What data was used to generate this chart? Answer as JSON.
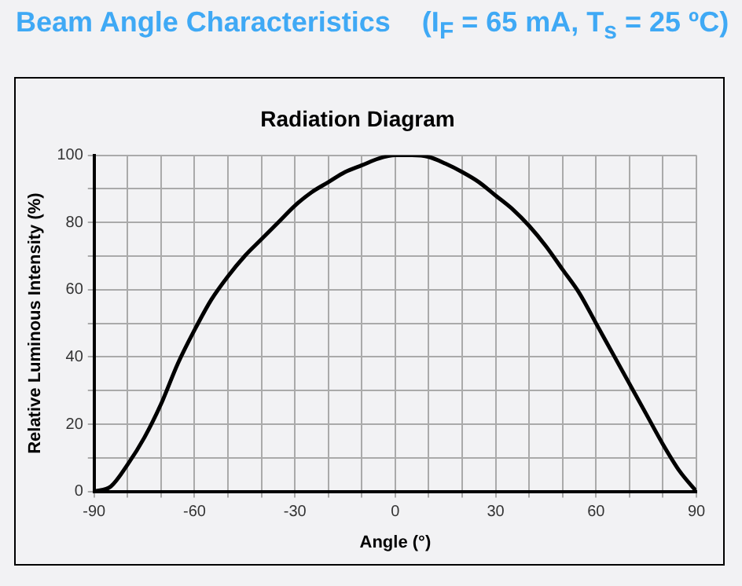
{
  "chart_data": {
    "type": "line",
    "title": "Beam Angle Characteristics    (I$_{F}$ = 65 mA, T$_{s}$ = 25 ºC)",
    "subtitle": "Radiation Diagram",
    "xlabel": "Angle (°)",
    "ylabel": "Relative Luminous Intensity (%)",
    "x": [
      -90,
      -85,
      -80,
      -75,
      -70,
      -65,
      -60,
      -55,
      -50,
      -45,
      -40,
      -35,
      -30,
      -25,
      -20,
      -15,
      -10,
      -5,
      0,
      5,
      10,
      15,
      20,
      25,
      30,
      35,
      40,
      45,
      50,
      55,
      60,
      65,
      70,
      75,
      80,
      85,
      90
    ],
    "series": [
      {
        "color": "#000000",
        "values": [
          0,
          1.5,
          8,
          16,
          26,
          38,
          48,
          57,
          64,
          70,
          75,
          80,
          85,
          89,
          92,
          95,
          97,
          99,
          100,
          100,
          99.5,
          97.5,
          95,
          92,
          88,
          84,
          79,
          73,
          66,
          59,
          50,
          41,
          32,
          23,
          14,
          6,
          0
        ]
      }
    ],
    "xlim": [
      -90,
      90
    ],
    "xticks": [
      -90,
      {
        "value": -80,
        "label": null
      },
      {
        "value": -70,
        "label": null
      },
      -60,
      {
        "value": -50,
        "label": null
      },
      {
        "value": -40,
        "label": null
      },
      -30,
      {
        "value": -20,
        "label": null
      },
      {
        "value": -10,
        "label": null
      },
      0,
      {
        "value": 10,
        "label": null
      },
      {
        "value": 20,
        "label": null
      },
      30,
      {
        "value": 40,
        "label": null
      },
      {
        "value": 50,
        "label": null
      },
      60,
      {
        "value": 70,
        "label": null
      },
      {
        "value": 80,
        "label": null
      },
      90
    ],
    "ylim": [
      0,
      100
    ],
    "yticks": [
      0,
      {
        "value": 10,
        "label": null
      },
      20,
      {
        "value": 30,
        "label": null
      },
      40,
      {
        "value": 50,
        "label": null
      },
      60,
      {
        "value": 70,
        "label": null
      },
      80,
      {
        "value": 90,
        "label": null
      },
      100
    ],
    "grid": true,
    "legend": false,
    "marker": "none",
    "line_style": "solid"
  }
}
